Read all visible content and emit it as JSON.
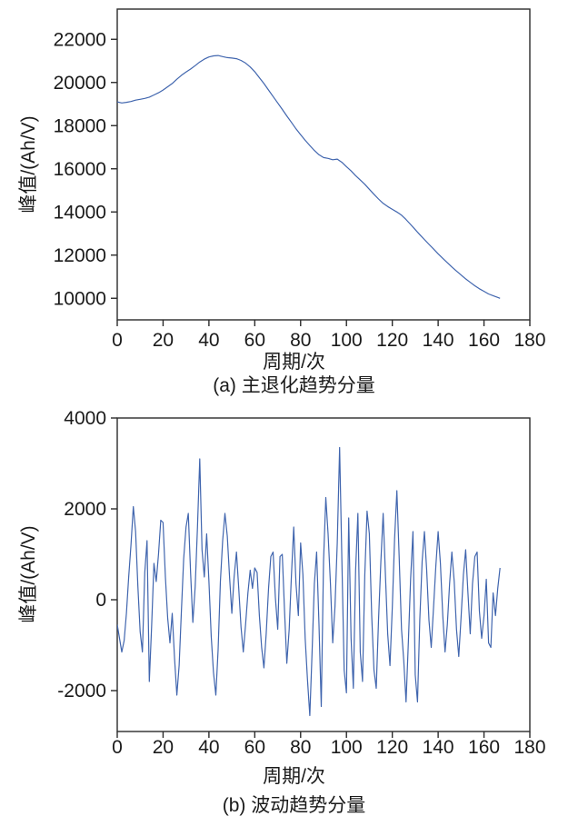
{
  "figure": {
    "background": "#ffffff",
    "axis_color": "#2b2b2b",
    "text_color": "#1a1a1a"
  },
  "chart_data": [
    {
      "type": "line",
      "caption": "(a) 主退化趋势分量",
      "xlabel": "周期/次",
      "ylabel": "峰值/(Ah/V)",
      "xlim": [
        0,
        180
      ],
      "ylim": [
        9000,
        23400
      ],
      "xticks": [
        0,
        20,
        40,
        60,
        80,
        100,
        120,
        140,
        160,
        180
      ],
      "yticks": [
        10000,
        12000,
        14000,
        16000,
        18000,
        20000,
        22000
      ],
      "line_color": "#4065ae",
      "points": [
        [
          0,
          19100
        ],
        [
          2,
          19050
        ],
        [
          4,
          19080
        ],
        [
          6,
          19120
        ],
        [
          8,
          19180
        ],
        [
          10,
          19220
        ],
        [
          12,
          19260
        ],
        [
          14,
          19320
        ],
        [
          16,
          19420
        ],
        [
          18,
          19520
        ],
        [
          20,
          19650
        ],
        [
          22,
          19800
        ],
        [
          24,
          19950
        ],
        [
          26,
          20150
        ],
        [
          28,
          20330
        ],
        [
          30,
          20480
        ],
        [
          32,
          20620
        ],
        [
          34,
          20780
        ],
        [
          36,
          20950
        ],
        [
          38,
          21080
        ],
        [
          40,
          21180
        ],
        [
          42,
          21230
        ],
        [
          44,
          21250
        ],
        [
          46,
          21200
        ],
        [
          48,
          21150
        ],
        [
          50,
          21130
        ],
        [
          52,
          21100
        ],
        [
          54,
          21020
        ],
        [
          56,
          20900
        ],
        [
          58,
          20720
        ],
        [
          60,
          20500
        ],
        [
          62,
          20220
        ],
        [
          64,
          19950
        ],
        [
          66,
          19650
        ],
        [
          68,
          19350
        ],
        [
          70,
          19050
        ],
        [
          72,
          18750
        ],
        [
          74,
          18450
        ],
        [
          76,
          18150
        ],
        [
          78,
          17850
        ],
        [
          80,
          17580
        ],
        [
          82,
          17320
        ],
        [
          84,
          17080
        ],
        [
          86,
          16850
        ],
        [
          88,
          16650
        ],
        [
          90,
          16520
        ],
        [
          92,
          16480
        ],
        [
          94,
          16420
        ],
        [
          96,
          16450
        ],
        [
          98,
          16300
        ],
        [
          100,
          16100
        ],
        [
          102,
          15900
        ],
        [
          104,
          15680
        ],
        [
          106,
          15480
        ],
        [
          108,
          15280
        ],
        [
          110,
          15050
        ],
        [
          112,
          14820
        ],
        [
          114,
          14600
        ],
        [
          116,
          14400
        ],
        [
          118,
          14250
        ],
        [
          120,
          14120
        ],
        [
          122,
          14000
        ],
        [
          124,
          13850
        ],
        [
          126,
          13650
        ],
        [
          128,
          13420
        ],
        [
          130,
          13180
        ],
        [
          132,
          12950
        ],
        [
          134,
          12720
        ],
        [
          136,
          12500
        ],
        [
          138,
          12280
        ],
        [
          140,
          12060
        ],
        [
          142,
          11850
        ],
        [
          144,
          11650
        ],
        [
          146,
          11450
        ],
        [
          148,
          11260
        ],
        [
          150,
          11080
        ],
        [
          152,
          10900
        ],
        [
          154,
          10740
        ],
        [
          156,
          10580
        ],
        [
          158,
          10440
        ],
        [
          160,
          10320
        ],
        [
          162,
          10200
        ],
        [
          164,
          10120
        ],
        [
          166,
          10040
        ],
        [
          167,
          10000
        ]
      ]
    },
    {
      "type": "line",
      "caption": "(b) 波动趋势分量",
      "xlabel": "周期/次",
      "ylabel": "峰值/(Ah/V)",
      "xlim": [
        0,
        180
      ],
      "ylim": [
        -2900,
        4000
      ],
      "xticks": [
        0,
        20,
        40,
        60,
        80,
        100,
        120,
        140,
        160,
        180
      ],
      "yticks": [
        -2000,
        0,
        2000,
        4000
      ],
      "line_color": "#4065ae",
      "x0": 0,
      "values": [
        -550,
        -850,
        -1150,
        -900,
        -300,
        500,
        1200,
        2050,
        1500,
        300,
        -700,
        -1150,
        600,
        1300,
        -1800,
        -600,
        800,
        400,
        1000,
        1750,
        1700,
        500,
        -400,
        -950,
        -300,
        -1300,
        -2100,
        -1450,
        -250,
        900,
        1600,
        1900,
        600,
        -500,
        300,
        1600,
        3100,
        1100,
        500,
        1450,
        400,
        -800,
        -1600,
        -2100,
        -1100,
        400,
        1300,
        1900,
        1400,
        500,
        -300,
        500,
        1050,
        250,
        -600,
        -1150,
        -550,
        150,
        650,
        250,
        700,
        600,
        -350,
        -1050,
        -1500,
        -750,
        250,
        950,
        1050,
        50,
        -650,
        950,
        1000,
        -250,
        -1400,
        -650,
        550,
        1600,
        350,
        -350,
        1250,
        550,
        -850,
        -1750,
        -2550,
        -1150,
        350,
        1050,
        -550,
        -2350,
        850,
        2250,
        1450,
        350,
        -950,
        -150,
        1250,
        3350,
        850,
        -1550,
        -2050,
        1800,
        -850,
        -1950,
        650,
        1900,
        -1150,
        -1800,
        550,
        1950,
        1450,
        -350,
        -1550,
        -1950,
        -450,
        850,
        1900,
        550,
        -750,
        -1450,
        -150,
        1350,
        2400,
        950,
        -650,
        -1350,
        -2250,
        -950,
        450,
        1500,
        -1650,
        -2250,
        -450,
        850,
        1500,
        650,
        -450,
        -1050,
        -150,
        750,
        1500,
        800,
        -350,
        -1150,
        -550,
        350,
        1050,
        400,
        -650,
        -1250,
        -400,
        550,
        1100,
        150,
        -750,
        350,
        950,
        1050,
        -250,
        -850,
        -350,
        450,
        -950,
        -1050,
        150,
        -350,
        250,
        700
      ]
    }
  ]
}
